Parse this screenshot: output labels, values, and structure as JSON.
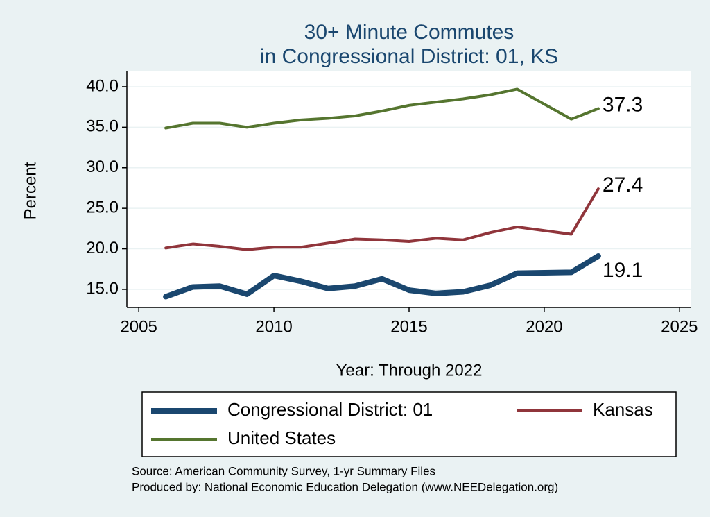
{
  "chart_data": {
    "type": "line",
    "title": [
      "30+ Minute Commutes",
      "in Congressional District:  01, KS"
    ],
    "x_label": "Year: Through 2022",
    "y_label": "Percent",
    "x": [
      2006,
      2007,
      2008,
      2009,
      2010,
      2011,
      2012,
      2013,
      2014,
      2015,
      2016,
      2017,
      2018,
      2019,
      2021,
      2022
    ],
    "series": [
      {
        "name": "Congressional District:  01",
        "color": "#1a476f",
        "width": 8,
        "values": [
          14.1,
          15.3,
          15.4,
          14.4,
          16.7,
          16.0,
          15.1,
          15.4,
          16.3,
          14.9,
          14.5,
          14.7,
          15.5,
          17.0,
          17.1,
          19.1
        ]
      },
      {
        "name": "Kansas",
        "color": "#90353b",
        "width": 4,
        "values": [
          20.1,
          20.6,
          20.3,
          19.9,
          20.2,
          20.2,
          20.7,
          21.2,
          21.1,
          20.9,
          21.3,
          21.1,
          22.0,
          22.7,
          21.8,
          27.4
        ]
      },
      {
        "name": "United States",
        "color": "#55752f",
        "width": 4,
        "values": [
          34.9,
          35.5,
          35.5,
          35.0,
          35.5,
          35.9,
          36.1,
          36.4,
          37.0,
          37.7,
          38.1,
          38.5,
          39.0,
          39.7,
          36.0,
          37.3
        ]
      }
    ],
    "xlim": [
      2004.56,
      2025.44
    ],
    "xticks": [
      2005,
      2010,
      2015,
      2020,
      2025
    ],
    "ylim": [
      12.77,
      41.88
    ],
    "yticks": [
      {
        "value": 15,
        "label": "15.0"
      },
      {
        "value": 20,
        "label": "20.0"
      },
      {
        "value": 25,
        "label": "25.0"
      },
      {
        "value": 30,
        "label": "30.0"
      },
      {
        "value": 35,
        "label": "35.0"
      },
      {
        "value": 40,
        "label": "40.0"
      }
    ],
    "grid": true,
    "notes": [
      "Source: American Community Survey, 1-yr Summary Files",
      "Produced by: National Economic Education Delegation (www.NEEDelegation.org)"
    ]
  }
}
